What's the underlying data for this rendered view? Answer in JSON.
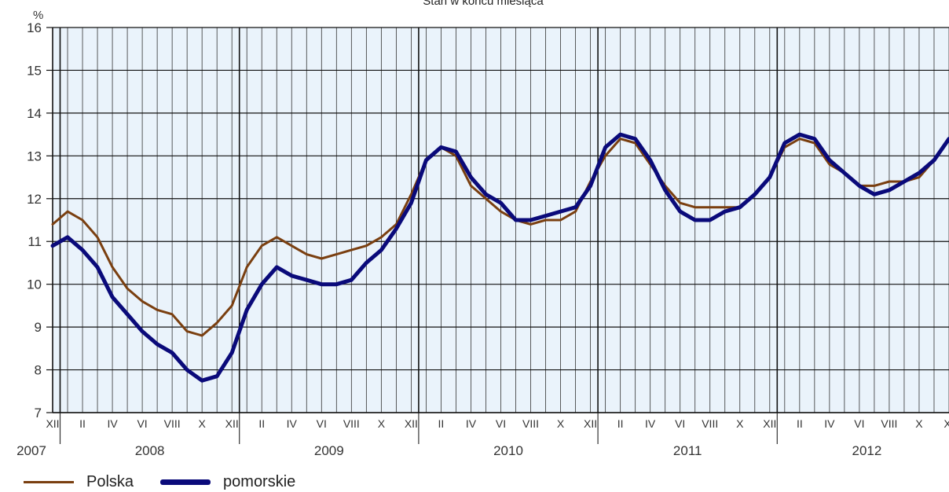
{
  "title": "Stan w końcu miesiąca",
  "chart_data": {
    "type": "line",
    "title": "Stan w końcu miesiąca",
    "ylabel": "%",
    "ylim": [
      7,
      16
    ],
    "yticks": [
      7,
      8,
      9,
      10,
      11,
      12,
      13,
      14,
      15,
      16
    ],
    "grid": true,
    "legend_placement": "bottom-left",
    "month_labels": [
      "XII",
      "II",
      "IV",
      "VI",
      "VIII",
      "X",
      "XII",
      "II",
      "IV",
      "VI",
      "VIII",
      "X",
      "XII",
      "II",
      "IV",
      "VI",
      "VIII",
      "X",
      "XII",
      "II",
      "IV",
      "VI",
      "VIII",
      "X",
      "XII",
      "II",
      "IV",
      "VI",
      "VIII",
      "X",
      "XI"
    ],
    "years": [
      "2007",
      "2008",
      "2009",
      "2010",
      "2011",
      "2012"
    ],
    "x_start": "2007-12",
    "series": [
      {
        "name": "Polska",
        "color": "#7a3f10",
        "values": [
          11.4,
          11.7,
          11.5,
          11.1,
          10.4,
          9.9,
          9.6,
          9.4,
          9.3,
          8.9,
          8.8,
          9.1,
          9.5,
          10.4,
          10.9,
          11.1,
          10.9,
          10.7,
          10.6,
          10.7,
          10.8,
          10.9,
          11.1,
          11.4,
          12.1,
          12.9,
          13.2,
          13.0,
          12.3,
          12.0,
          11.7,
          11.5,
          11.4,
          11.5,
          11.5,
          11.7,
          12.4,
          13.0,
          13.4,
          13.3,
          12.8,
          12.3,
          11.9,
          11.8,
          11.8,
          11.8,
          11.8,
          12.1,
          12.5,
          13.2,
          13.4,
          13.3,
          12.8,
          12.6,
          12.3,
          12.3,
          12.4,
          12.4,
          12.5,
          12.9,
          13.4
        ]
      },
      {
        "name": "pomorskie",
        "color": "#0a0a7a",
        "values": [
          10.9,
          11.1,
          10.8,
          10.4,
          9.7,
          9.3,
          8.9,
          8.6,
          8.4,
          8.0,
          7.75,
          7.85,
          8.4,
          9.4,
          10.0,
          10.4,
          10.2,
          10.1,
          10.0,
          10.0,
          10.1,
          10.5,
          10.8,
          11.3,
          11.9,
          12.9,
          13.2,
          13.1,
          12.5,
          12.1,
          11.9,
          11.5,
          11.5,
          11.6,
          11.7,
          11.8,
          12.3,
          13.2,
          13.5,
          13.4,
          12.9,
          12.2,
          11.7,
          11.5,
          11.5,
          11.7,
          11.8,
          12.1,
          12.5,
          13.3,
          13.5,
          13.4,
          12.9,
          12.6,
          12.3,
          12.1,
          12.2,
          12.4,
          12.6,
          12.9,
          13.4
        ]
      }
    ]
  }
}
